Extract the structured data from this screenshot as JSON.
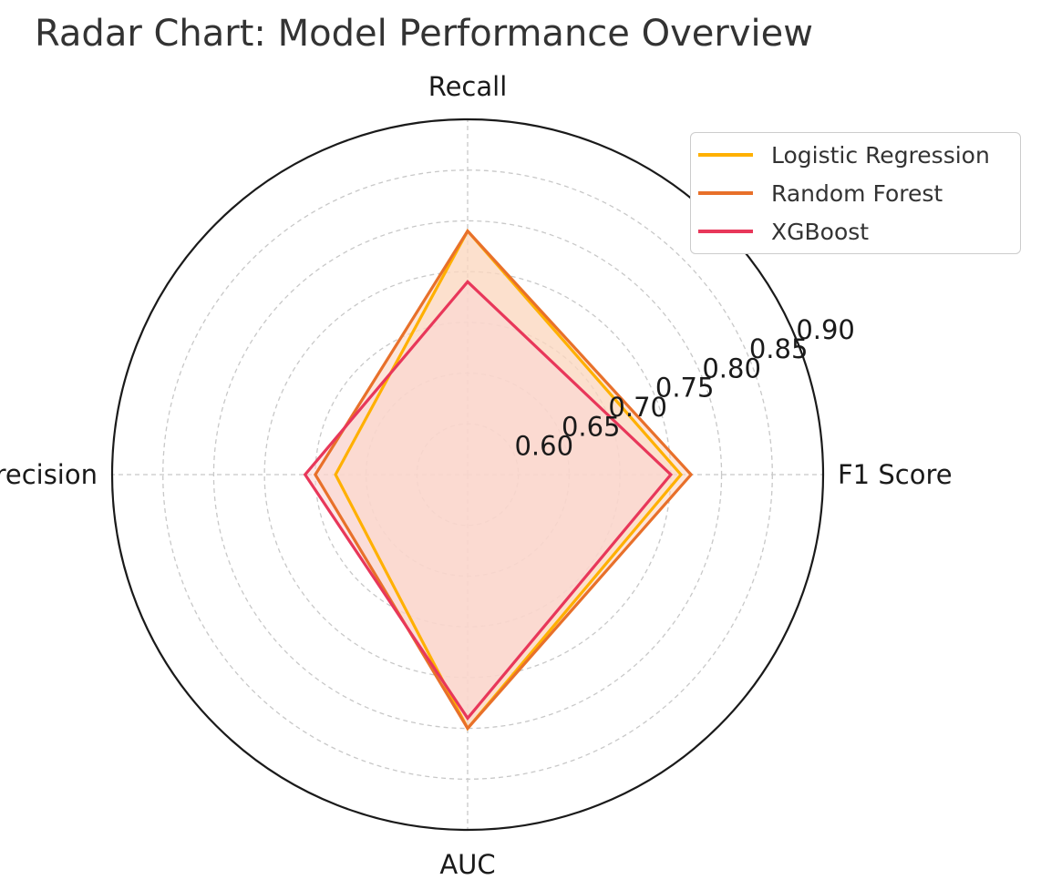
{
  "chart_data": {
    "type": "radar",
    "title": "Radar Chart: Model Performance Overview",
    "axes": [
      "F1 Score",
      "Recall",
      "Precision",
      "AUC"
    ],
    "rticks": [
      "0.60",
      "0.65",
      "0.70",
      "0.75",
      "0.80",
      "0.85",
      "0.90"
    ],
    "rlim": [
      0.55,
      0.9
    ],
    "grid": true,
    "legend_position": "top-right",
    "series": [
      {
        "name": "Logistic Regression",
        "color": "#FFB000",
        "fill": "#FFE6C7",
        "values": [
          0.76,
          0.79,
          0.68,
          0.8
        ]
      },
      {
        "name": "Random Forest",
        "color": "#E8702A",
        "fill": "#F9D2BE",
        "values": [
          0.77,
          0.79,
          0.7,
          0.8
        ]
      },
      {
        "name": "XGBoost",
        "color": "#E8375A",
        "fill": "#FAD6D6",
        "values": [
          0.75,
          0.74,
          0.71,
          0.79
        ]
      }
    ]
  }
}
